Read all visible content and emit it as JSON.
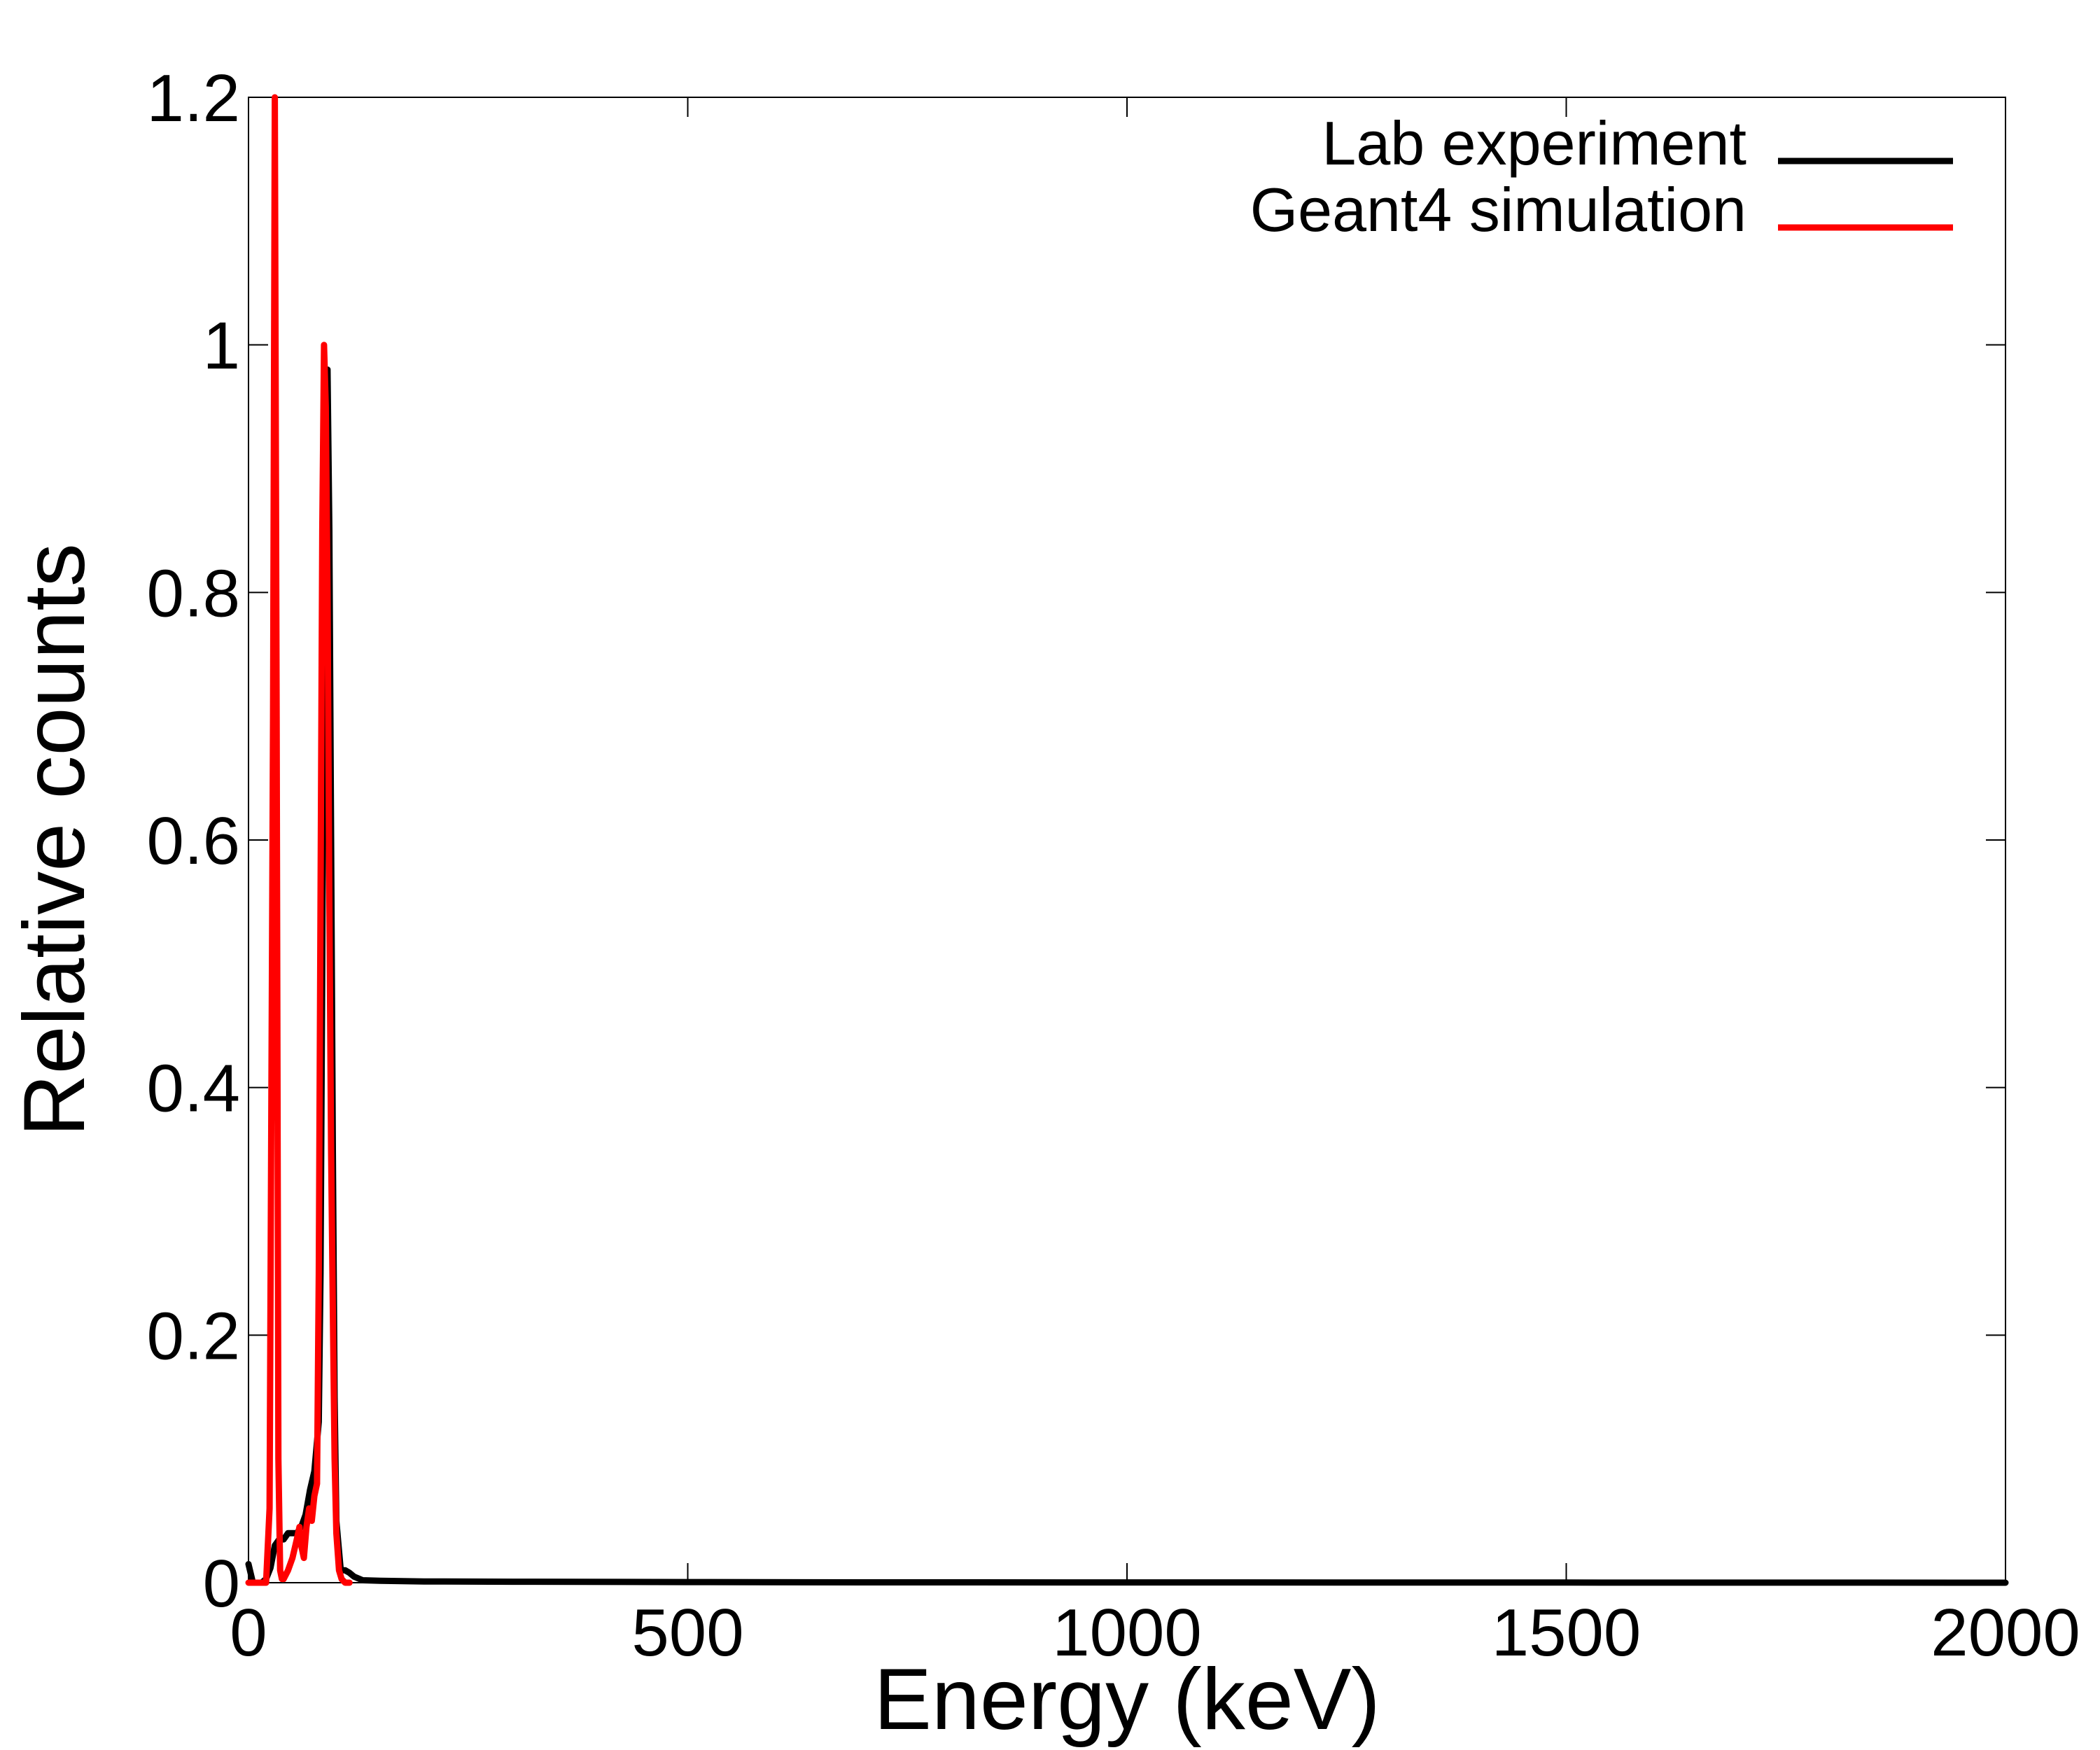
{
  "chart_data": {
    "type": "line",
    "title": "",
    "xlabel": "Energy (keV)",
    "ylabel": "Relative counts",
    "xlim": [
      0,
      2000
    ],
    "ylim": [
      0,
      1.2
    ],
    "xticks": [
      0,
      500,
      1000,
      1500,
      2000
    ],
    "xtick_labels": [
      "0",
      "500",
      "1000",
      "1500",
      "2000"
    ],
    "yticks": [
      0,
      0.2,
      0.4,
      0.6,
      0.8,
      1.0,
      1.2
    ],
    "ytick_labels": [
      "0",
      "0.2",
      "0.4",
      "0.6",
      "0.8",
      "1",
      "1.2"
    ],
    "grid": false,
    "legend_position": "top-right",
    "series": [
      {
        "name": "Lab experiment",
        "color": "#000000",
        "x": [
          0,
          5,
          10,
          15,
          20,
          25,
          30,
          35,
          40,
          45,
          50,
          55,
          60,
          65,
          70,
          75,
          80,
          82,
          84,
          86,
          88,
          90,
          92,
          94,
          96,
          98,
          100,
          105,
          110,
          115,
          120,
          130,
          150,
          200,
          300,
          500,
          700,
          1000,
          1500,
          2000
        ],
        "y": [
          0.015,
          0.0,
          0.0,
          0.0,
          0.003,
          0.012,
          0.03,
          0.035,
          0.035,
          0.04,
          0.04,
          0.04,
          0.045,
          0.055,
          0.075,
          0.09,
          0.13,
          0.25,
          0.5,
          0.8,
          0.95,
          0.98,
          0.85,
          0.6,
          0.35,
          0.15,
          0.05,
          0.01,
          0.01,
          0.008,
          0.005,
          0.002,
          0.0015,
          0.001,
          0.0008,
          0.0005,
          0.0003,
          0.0002,
          0.0001,
          0.0
        ]
      },
      {
        "name": "Geant4 simulation",
        "color": "#ff0000",
        "x": [
          0,
          10,
          20,
          24,
          28,
          30,
          32,
          34,
          36,
          38,
          40,
          45,
          50,
          55,
          58,
          60,
          63,
          66,
          69,
          72,
          75,
          78,
          80,
          82,
          84,
          86,
          88,
          90,
          92,
          94,
          96,
          98,
          100,
          103,
          106,
          110,
          115
        ],
        "y": [
          0.0,
          0.0,
          0.0,
          0.06,
          0.7,
          1.2,
          0.7,
          0.1,
          0.01,
          0.003,
          0.003,
          0.01,
          0.02,
          0.035,
          0.045,
          0.03,
          0.02,
          0.045,
          0.06,
          0.05,
          0.07,
          0.08,
          0.25,
          0.55,
          0.85,
          1.0,
          0.95,
          0.8,
          0.55,
          0.35,
          0.22,
          0.1,
          0.04,
          0.01,
          0.003,
          0.0,
          0.0
        ]
      }
    ]
  }
}
